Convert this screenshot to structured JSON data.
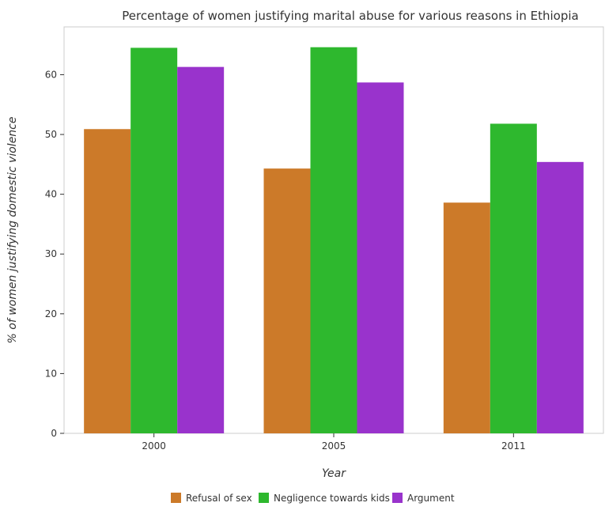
{
  "chart_data": {
    "type": "bar",
    "title": "Percentage of women justifying marital abuse for various reasons in Ethiopia",
    "xlabel": "Year",
    "ylabel": "% of women justifying domestic violence",
    "categories": [
      "2000",
      "2005",
      "2011"
    ],
    "series": [
      {
        "name": "Refusal of sex",
        "color": "#cc7a29",
        "values": [
          50.9,
          44.3,
          38.6
        ]
      },
      {
        "name": "Negligence towards kids",
        "color": "#2eb82e",
        "values": [
          64.5,
          64.6,
          51.8
        ]
      },
      {
        "name": "Argument",
        "color": "#9933cc",
        "values": [
          61.3,
          58.7,
          45.4
        ]
      }
    ],
    "ylim": [
      0,
      68
    ],
    "yticks": [
      0,
      10,
      20,
      30,
      40,
      50,
      60
    ],
    "grid": false,
    "legend_position": "bottom"
  }
}
